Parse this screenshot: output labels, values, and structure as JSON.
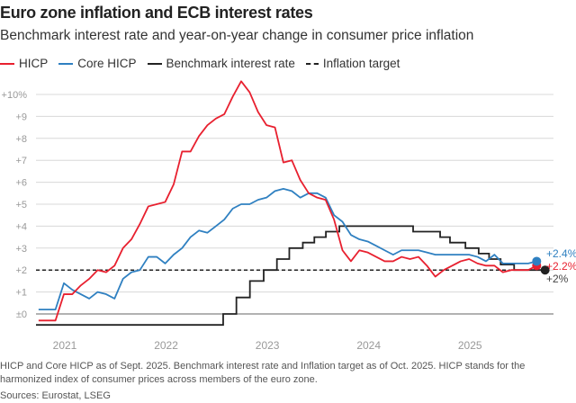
{
  "title": "Euro zone inflation and ECB interest rates",
  "subtitle": "Benchmark interest rate and year-on-year change in consumer price inflation",
  "footnote": "HICP and Core HICP as of Sept. 2025. Benchmark interest rate and Inflation target as of Oct. 2025. HICP stands for the harmonized index of consumer prices across members of the euro zone.",
  "sources": "Sources: Eurostat, LSEG",
  "chart_data": {
    "type": "line",
    "ylim": [
      -0.6,
      10.6
    ],
    "yticks": [
      0,
      1,
      2,
      3,
      4,
      5,
      6,
      7,
      8,
      9,
      10
    ],
    "ytick_labels": [
      "±0",
      "+1",
      "+2",
      "+3",
      "+4",
      "+5",
      "+6",
      "+7",
      "+8",
      "+9",
      "+10%"
    ],
    "xtick_labels": [
      "2021",
      "2022",
      "2023",
      "2024",
      "2025"
    ],
    "grid": true,
    "legend_placement": "top-left",
    "series": [
      {
        "name": "HICP",
        "color": "#e8202f",
        "start": "2020-10",
        "values": [
          -0.3,
          -0.3,
          -0.3,
          0.9,
          0.9,
          1.3,
          1.6,
          2.0,
          1.9,
          2.2,
          3.0,
          3.4,
          4.1,
          4.9,
          5.0,
          5.1,
          5.9,
          7.4,
          7.4,
          8.1,
          8.6,
          8.9,
          9.1,
          9.9,
          10.6,
          10.1,
          9.2,
          8.6,
          8.5,
          6.9,
          7.0,
          6.1,
          5.5,
          5.3,
          5.2,
          4.3,
          2.9,
          2.4,
          2.9,
          2.8,
          2.6,
          2.4,
          2.4,
          2.6,
          2.5,
          2.6,
          2.2,
          1.7,
          2.0,
          2.2,
          2.4,
          2.5,
          2.3,
          2.2,
          2.2,
          1.9,
          2.0,
          2.0,
          2.0,
          2.2
        ],
        "end_label": "+2.2%"
      },
      {
        "name": "Core HICP",
        "color": "#2f80c1",
        "start": "2020-10",
        "values": [
          0.2,
          0.2,
          0.2,
          1.4,
          1.1,
          0.9,
          0.7,
          1.0,
          0.9,
          0.7,
          1.6,
          1.9,
          2.0,
          2.6,
          2.6,
          2.3,
          2.7,
          3.0,
          3.5,
          3.8,
          3.7,
          4.0,
          4.3,
          4.8,
          5.0,
          5.0,
          5.2,
          5.3,
          5.6,
          5.7,
          5.6,
          5.3,
          5.5,
          5.5,
          5.3,
          4.5,
          4.2,
          3.6,
          3.4,
          3.3,
          3.1,
          2.9,
          2.7,
          2.9,
          2.9,
          2.9,
          2.8,
          2.7,
          2.7,
          2.7,
          2.7,
          2.7,
          2.6,
          2.4,
          2.7,
          2.3,
          2.3,
          2.3,
          2.3,
          2.4
        ],
        "end_label": "+2.4%"
      },
      {
        "name": "Benchmark interest rate",
        "color": "#222222",
        "type": "step",
        "steps": [
          [
            "2020-10-01",
            -0.5
          ],
          [
            "2022-07-27",
            0
          ],
          [
            "2022-09-14",
            0.75
          ],
          [
            "2022-11-02",
            1.5
          ],
          [
            "2022-12-21",
            2.0
          ],
          [
            "2023-02-08",
            2.5
          ],
          [
            "2023-03-22",
            3.0
          ],
          [
            "2023-05-10",
            3.25
          ],
          [
            "2023-06-21",
            3.5
          ],
          [
            "2023-08-02",
            3.75
          ],
          [
            "2023-09-20",
            4.0
          ],
          [
            "2024-06-12",
            3.75
          ],
          [
            "2024-09-18",
            3.5
          ],
          [
            "2024-10-23",
            3.25
          ],
          [
            "2024-12-18",
            3.0
          ],
          [
            "2025-02-05",
            2.75
          ],
          [
            "2025-03-12",
            2.5
          ],
          [
            "2025-04-23",
            2.25
          ],
          [
            "2025-06-11",
            2.0
          ]
        ],
        "end": "2025-10-01",
        "end_label": "+2%"
      },
      {
        "name": "Inflation target",
        "color": "#222222",
        "style": "dashed",
        "value": 2
      }
    ]
  }
}
